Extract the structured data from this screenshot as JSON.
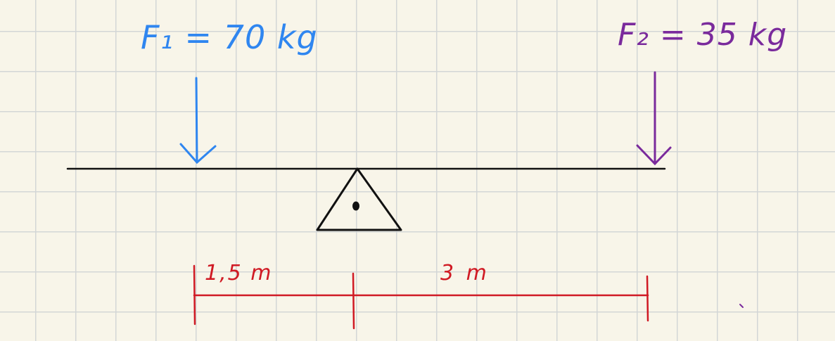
{
  "forces": {
    "f1": {
      "label": "F₁ = 70 kg",
      "color": "#2f86f0"
    },
    "f2": {
      "label": "F₂ = 35 kg",
      "color": "#7a2a9c"
    }
  },
  "distances": {
    "left": {
      "label": "1,5 m",
      "color": "#d01a24"
    },
    "right": {
      "label": "3 m",
      "color": "#d01a24"
    }
  },
  "beam": {
    "color": "#111111"
  },
  "paper": {
    "background": "#f8f5e9",
    "grid_color": "#d3d6d6"
  }
}
